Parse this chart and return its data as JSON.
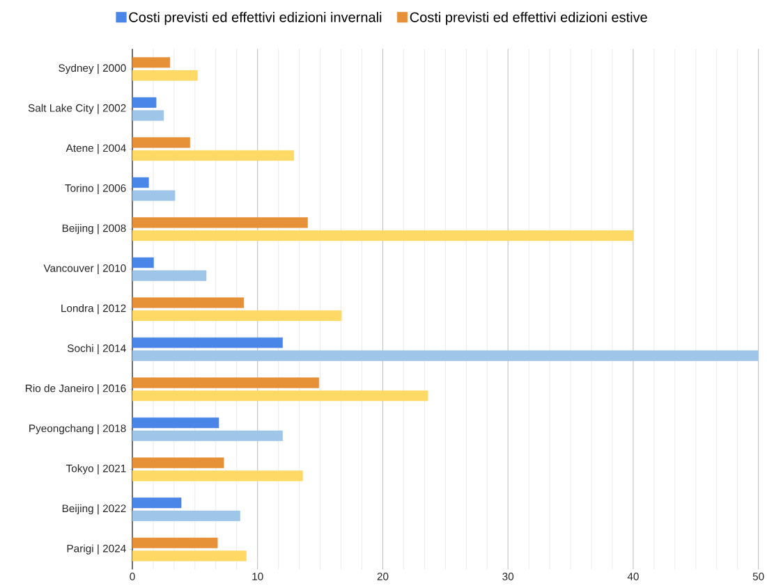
{
  "chart_data": {
    "type": "bar",
    "orientation": "horizontal",
    "categories": [
      "Sydney | 2000",
      "Salt Lake City | 2002",
      "Atene | 2004",
      "Torino | 2006",
      "Beijing | 2008",
      "Vancouver | 2010",
      "Londra | 2012",
      "Sochi | 2014",
      "Rio de Janeiro | 2016",
      "Pyeongchang | 2018",
      "Tokyo | 2021",
      "Beijing | 2022",
      "Parigi | 2024"
    ],
    "series": [
      {
        "name": "Costi previsti ed effettivi edizioni invernali",
        "color": "#4a86e8",
        "values": [
          null,
          1.9,
          null,
          1.3,
          null,
          1.7,
          null,
          12.0,
          null,
          6.9,
          null,
          3.9,
          null
        ]
      },
      {
        "color": "#9fc5e8",
        "values": [
          null,
          2.5,
          null,
          3.4,
          null,
          5.9,
          null,
          50,
          null,
          12.0,
          null,
          8.6,
          null
        ]
      },
      {
        "name": "Costi previsti ed effettivi edizioni estive",
        "color": "#e69138",
        "values": [
          3.0,
          null,
          4.6,
          null,
          14.0,
          null,
          8.9,
          null,
          14.9,
          null,
          7.3,
          null,
          6.8
        ]
      },
      {
        "color": "#ffd966",
        "values": [
          5.2,
          null,
          12.9,
          null,
          40.0,
          null,
          16.7,
          null,
          23.6,
          null,
          13.6,
          null,
          9.1
        ]
      }
    ],
    "xlim": [
      0,
      50
    ],
    "xticks": [
      0,
      10,
      20,
      30,
      40,
      50
    ],
    "grid": "x",
    "legend": "top"
  }
}
